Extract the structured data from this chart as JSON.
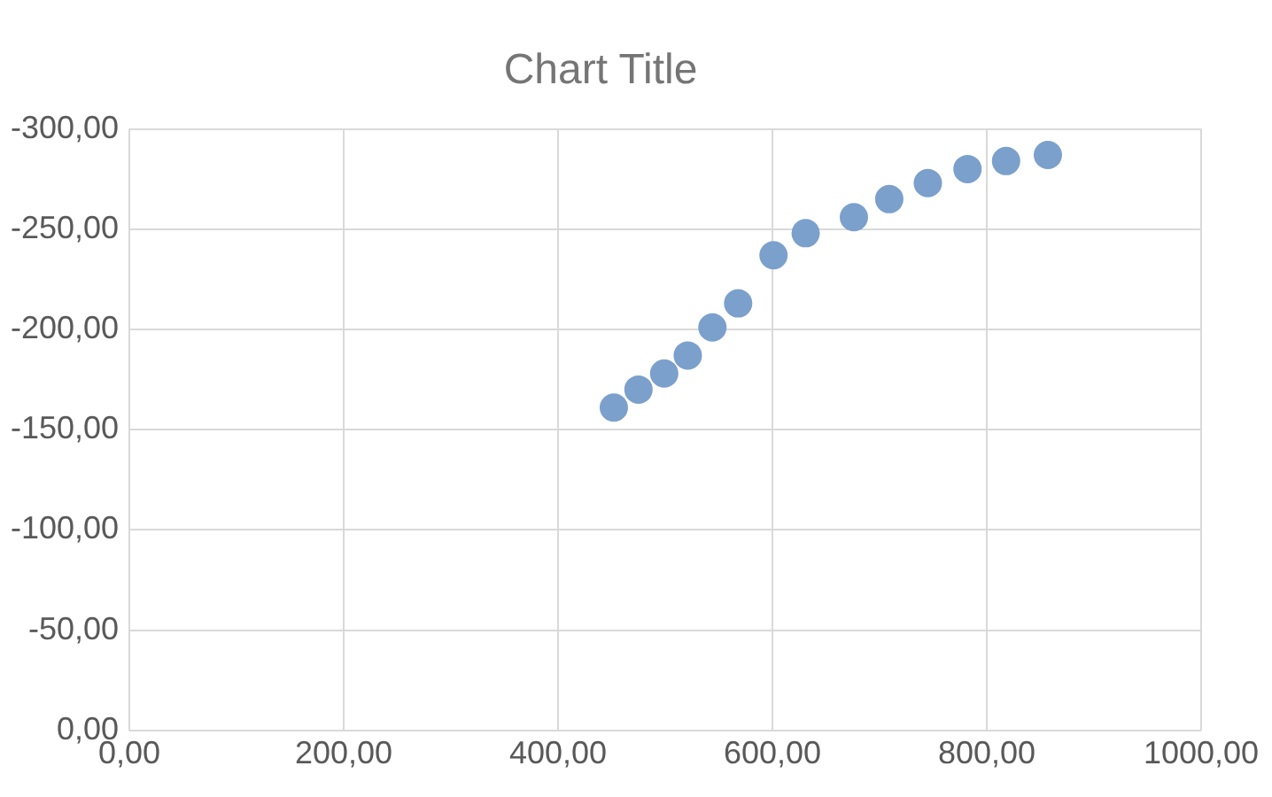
{
  "chart_data": {
    "type": "scatter",
    "title": "Chart Title",
    "x": [
      452,
      475,
      499,
      521,
      544,
      568,
      601,
      631,
      676,
      709,
      745,
      782,
      818,
      857
    ],
    "values": [
      -161,
      -170,
      -178,
      -187,
      -201,
      -213,
      -237,
      -248,
      -256,
      -265,
      -273,
      -280,
      -284,
      -287
    ],
    "color": "#7ba0cc",
    "marker": "circle",
    "grid": true,
    "xlim": [
      0,
      1000
    ],
    "xticks": [
      {
        "value": 0,
        "label": "0,00"
      },
      {
        "value": 200,
        "label": "200,00"
      },
      {
        "value": 400,
        "label": "400,00"
      },
      {
        "value": 600,
        "label": "600,00"
      },
      {
        "value": 800,
        "label": "800,00"
      },
      {
        "value": 1000,
        "label": "1000,00"
      }
    ],
    "ylim": [
      0,
      -300
    ],
    "yticks": [
      {
        "value": 0,
        "label": "0,00"
      },
      {
        "value": -50,
        "label": "-50,00"
      },
      {
        "value": -100,
        "label": "-100,00"
      },
      {
        "value": -150,
        "label": "-150,00"
      },
      {
        "value": -200,
        "label": "-200,00"
      },
      {
        "value": -250,
        "label": "-250,00"
      },
      {
        "value": -300,
        "label": "-300,00"
      }
    ]
  }
}
